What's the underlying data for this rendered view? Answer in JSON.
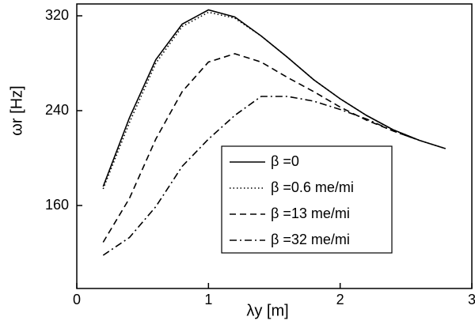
{
  "chart_data": {
    "type": "line",
    "x_label": "λy  [m]",
    "y_label": "ωr [Hz]",
    "x": [
      0.2,
      0.4,
      0.6,
      0.8,
      1.0,
      1.2,
      1.4,
      1.6,
      1.8,
      2.0,
      2.2,
      2.4,
      2.6,
      2.8
    ],
    "series": [
      {
        "name": "β =0",
        "color": "#000000",
        "style": "solid",
        "values": [
          176,
          234,
          283,
          313,
          325,
          319,
          303,
          285,
          266,
          250,
          236,
          224,
          215,
          208
        ]
      },
      {
        "name": "β =0.6 me/mi",
        "color": "#000000",
        "style": "dotted",
        "values": [
          174,
          230,
          280,
          311,
          323,
          318,
          303,
          285,
          266,
          250,
          236,
          224,
          215,
          208
        ]
      },
      {
        "name": "β =13 me/mi",
        "color": "#000000",
        "style": "dashed",
        "values": [
          129,
          166,
          216,
          256,
          281,
          288,
          281,
          268,
          256,
          243,
          232,
          223,
          215,
          null
        ]
      },
      {
        "name": "β =32 me/mi",
        "color": "#000000",
        "style": "dashdot",
        "values": [
          118,
          133,
          159,
          193,
          216,
          236,
          252,
          252,
          248,
          241,
          233,
          223,
          215,
          null
        ]
      }
    ],
    "xlim": [
      0,
      3
    ],
    "xticks": [
      0,
      1,
      2,
      3
    ],
    "ylim": [
      90,
      330
    ],
    "yticks": [
      160,
      240,
      320
    ],
    "grid": false
  }
}
